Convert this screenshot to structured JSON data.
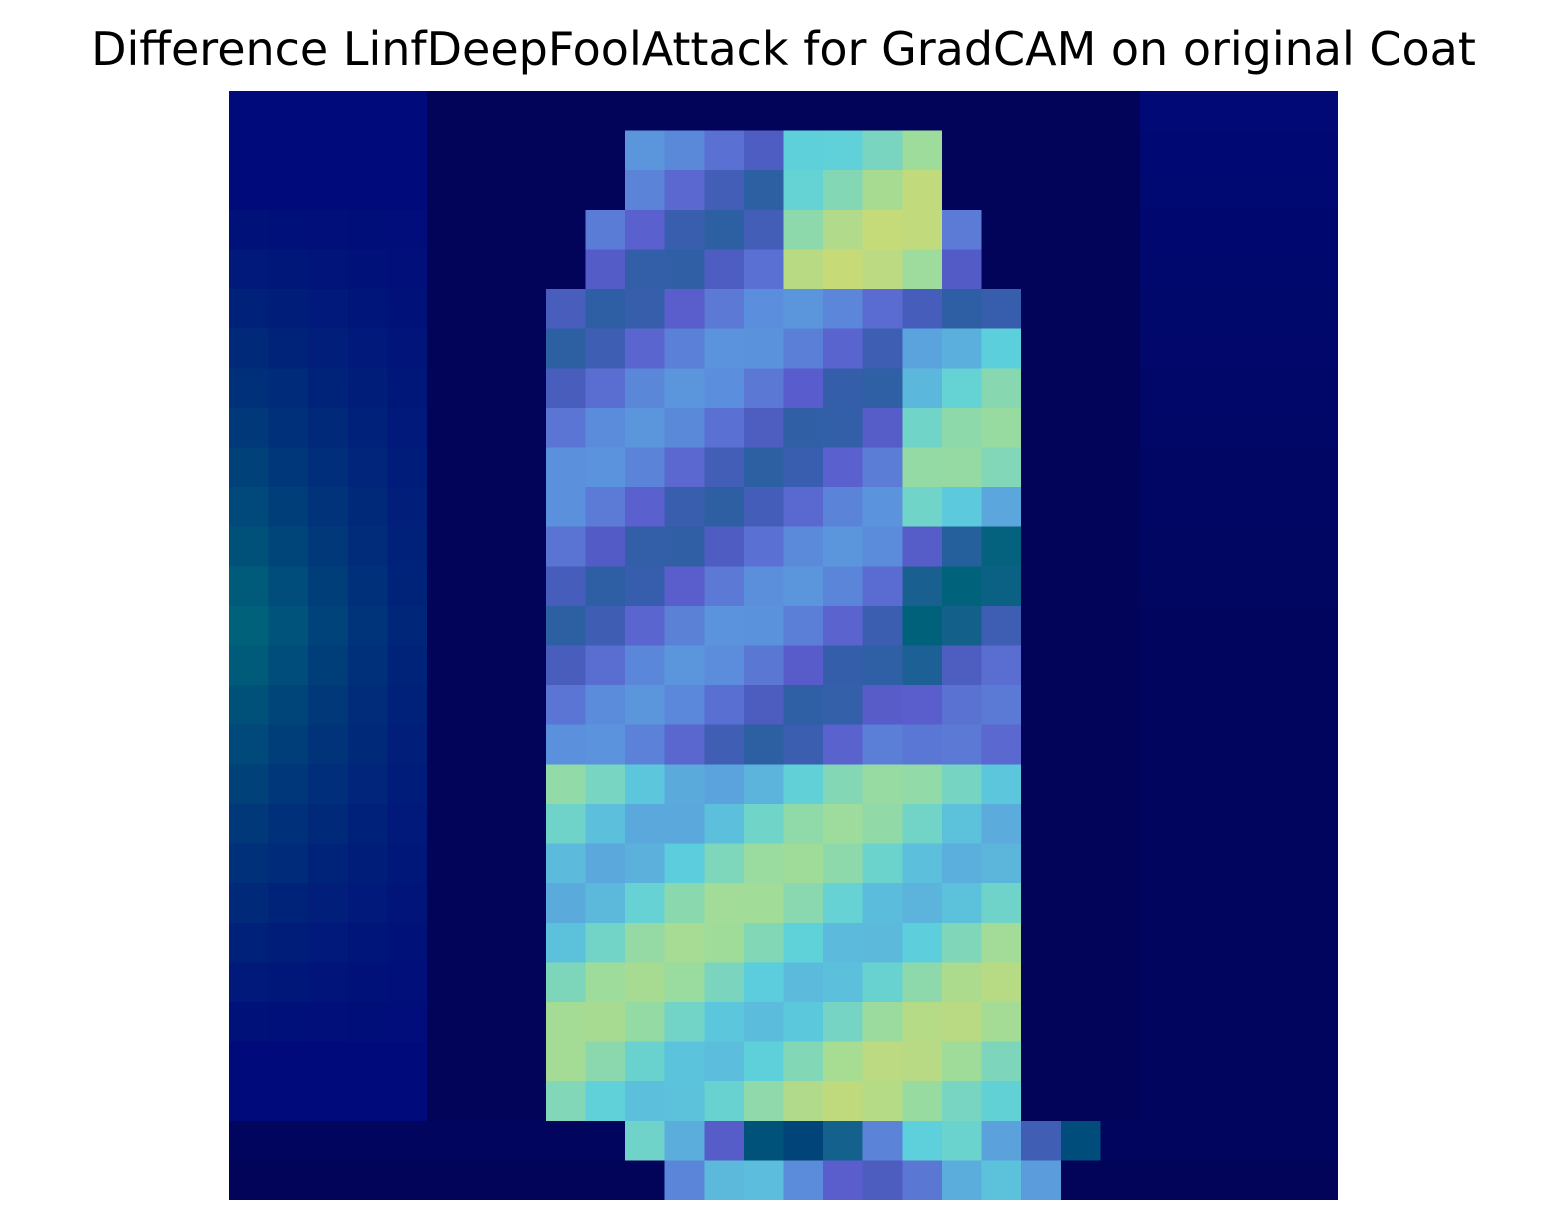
{
  "title": "Difference LinfDeepFoolAttack for GradCAM on original Coat",
  "heatmap": {
    "rows": 28,
    "cols": 28,
    "colormap": "jet overlay on coat image",
    "background_color": "#ffffff"
  }
}
